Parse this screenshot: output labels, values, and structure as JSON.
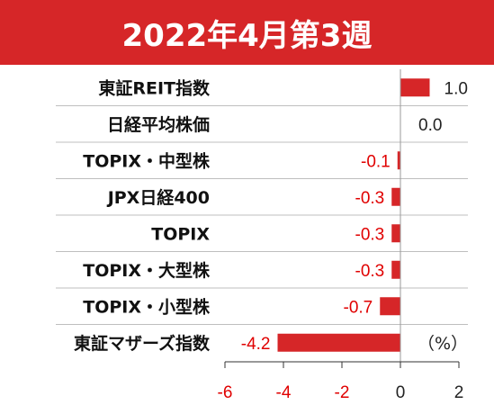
{
  "header": {
    "title": "2022年4月第3週"
  },
  "colors": {
    "bar": "#d62628",
    "negative_label": "#e00000",
    "positive_label": "#222222",
    "header_bg": "#d62628",
    "divider": "#bfbfbf"
  },
  "unit_label": "（%）",
  "chart_data": {
    "type": "bar",
    "orientation": "horizontal",
    "title": "2022年4月第3週",
    "categories": [
      "東証REIT指数",
      "日経平均株価",
      "TOPIX・中型株",
      "JPX日経400",
      "TOPIX",
      "TOPIX・大型株",
      "TOPIX・小型株",
      "東証マザーズ指数"
    ],
    "values": [
      1.0,
      0.0,
      -0.1,
      -0.3,
      -0.3,
      -0.3,
      -0.7,
      -4.2
    ],
    "value_labels": [
      "1.0",
      "0.0",
      "-0.1",
      "-0.3",
      "-0.3",
      "-0.3",
      "-0.7",
      "-4.2"
    ],
    "xlim": [
      -6,
      2
    ],
    "xticks": [
      -6,
      -4,
      -2,
      0,
      2
    ],
    "xtick_labels": [
      "-6",
      "-4",
      "-2",
      "0",
      "2"
    ],
    "xlabel": "（%）",
    "ylabel": "",
    "grid": false,
    "legend": "none"
  }
}
